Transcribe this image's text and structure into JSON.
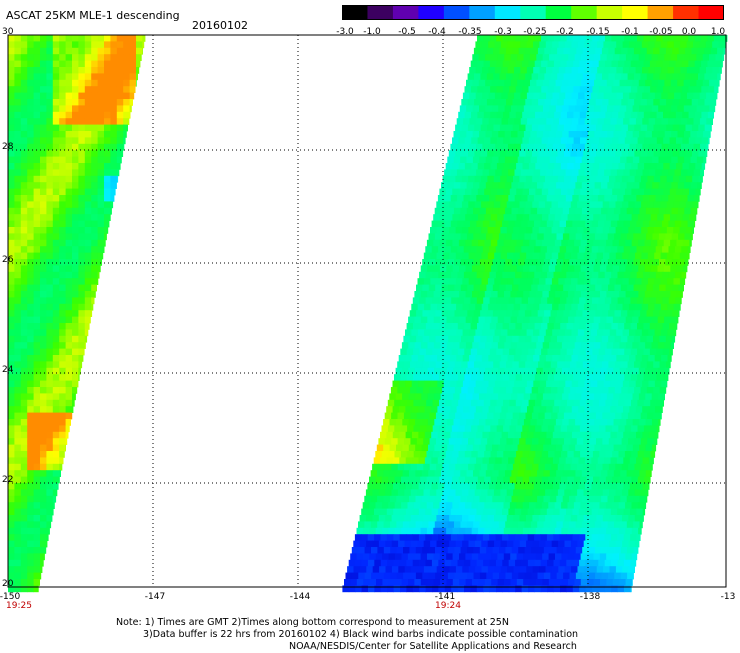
{
  "header": {
    "title": "ASCAT 25KM MLE-1 descending",
    "date": "20160102"
  },
  "colorbar": {
    "labels": [
      "-3.0",
      "-1.0",
      "-0.5",
      "-0.4",
      "-0.35",
      "-0.3",
      "-0.25",
      "-0.2",
      "-0.15",
      "-0.1",
      "-0.05",
      "0.0",
      "1.0"
    ],
    "colors": [
      "#000000",
      "#3c0060",
      "#6000b0",
      "#2000ff",
      "#0050ff",
      "#00a0ff",
      "#00e8ff",
      "#00ffb4",
      "#00ff40",
      "#60ff00",
      "#c8ff00",
      "#ffff00",
      "#ffa000",
      "#ff3000",
      "#ff0000"
    ]
  },
  "axes": {
    "y_ticks": [
      "30",
      "28",
      "26",
      "24",
      "22",
      "20"
    ],
    "x_ticks": [
      "-150",
      "-147",
      "-144",
      "-141",
      "-138",
      "-13"
    ],
    "time_labels": [
      "19:25",
      "19:24"
    ]
  },
  "notes": [
    "Note: 1) Times are GMT 2)Times along bottom correspond to measurement at 25N",
    "3)Data buffer is 22 hrs from 20160102 4) Black wind barbs indicate possible contamination",
    "NOAA/NESDIS/Center for Satellite Applications and Research"
  ],
  "chart_data": {
    "type": "heatmap",
    "title": "ASCAT 25KM MLE-1 descending",
    "x_range": [
      -150,
      -136
    ],
    "y_range": [
      20,
      30
    ],
    "colorbar_range": [
      -3.0,
      1.0
    ],
    "swaths": [
      "west swath edge along -150 to -147",
      "east swath between about -142.5 and -136"
    ],
    "scale_labels": [
      "-3.0",
      "-1.0",
      "-0.5",
      "-0.4",
      "-0.35",
      "-0.3",
      "-0.25",
      "-0.2",
      "-0.15",
      "-0.1",
      "-0.05",
      "0.0",
      "1.0"
    ]
  }
}
